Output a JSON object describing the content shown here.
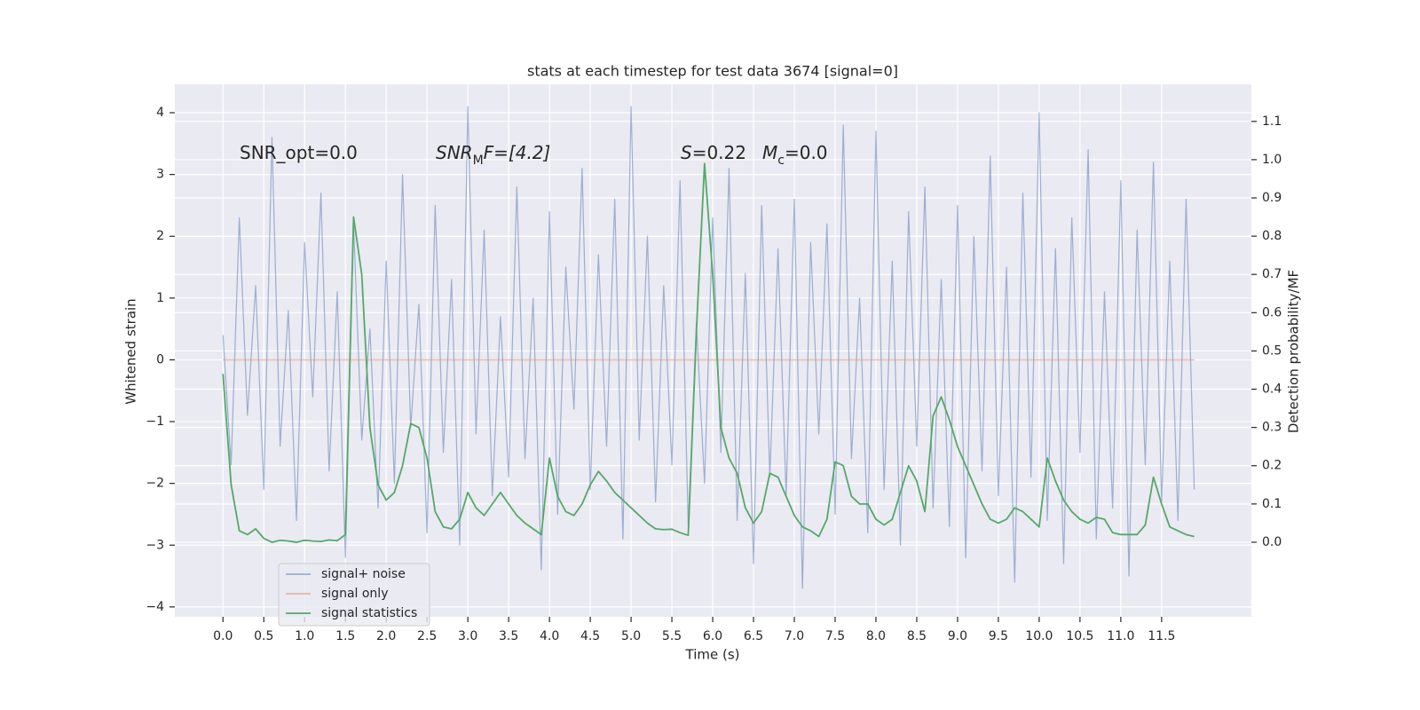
{
  "chart_data": {
    "type": "line",
    "title": "stats at each timestep for test data 3674 [signal=0]",
    "xlabel": "Time (s)",
    "ylabel": "Whitened strain",
    "y2label": "Detection probability/MF",
    "annotations": [
      [
        "SNR_opt=0.0"
      ],
      [
        "SNR",
        "M",
        "F=[4.2]"
      ],
      [
        "S",
        "=0.22"
      ],
      [
        "M",
        "c",
        "=0.0"
      ]
    ],
    "x": [
      0.0,
      0.1,
      0.2,
      0.3,
      0.4,
      0.5,
      0.6,
      0.7,
      0.8,
      0.9,
      1.0,
      1.1,
      1.2,
      1.3,
      1.4,
      1.5,
      1.6,
      1.7,
      1.8,
      1.9,
      2.0,
      2.1,
      2.2,
      2.3,
      2.4,
      2.5,
      2.6,
      2.7,
      2.8,
      2.9,
      3.0,
      3.1,
      3.2,
      3.3,
      3.4,
      3.5,
      3.6,
      3.7,
      3.8,
      3.9,
      4.0,
      4.1,
      4.2,
      4.3,
      4.4,
      4.5,
      4.6,
      4.7,
      4.8,
      4.9,
      5.0,
      5.1,
      5.2,
      5.3,
      5.4,
      5.5,
      5.6,
      5.7,
      5.8,
      5.9,
      6.0,
      6.1,
      6.2,
      6.3,
      6.4,
      6.5,
      6.6,
      6.7,
      6.8,
      6.9,
      7.0,
      7.1,
      7.2,
      7.3,
      7.4,
      7.5,
      7.6,
      7.7,
      7.8,
      7.9,
      8.0,
      8.1,
      8.2,
      8.3,
      8.4,
      8.5,
      8.6,
      8.7,
      8.8,
      8.9,
      9.0,
      9.1,
      9.2,
      9.3,
      9.4,
      9.5,
      9.6,
      9.7,
      9.8,
      9.9,
      10.0,
      10.1,
      10.2,
      10.3,
      10.4,
      10.5,
      10.6,
      10.7,
      10.8,
      10.9,
      11.0,
      11.1,
      11.2,
      11.3,
      11.4,
      11.5,
      11.6,
      11.7,
      11.8,
      11.9
    ],
    "series": [
      {
        "name": "signal+ noise",
        "color": "#4c72b0",
        "values": [
          0.4,
          -1.7,
          2.3,
          -0.9,
          1.2,
          -2.1,
          3.6,
          -1.4,
          0.8,
          -2.6,
          1.9,
          -0.6,
          2.7,
          -1.8,
          1.1,
          -3.2,
          2.2,
          -1.3,
          0.5,
          -2.4,
          1.6,
          -2.0,
          3.0,
          -1.1,
          0.9,
          -2.8,
          2.5,
          -1.5,
          1.3,
          -3.0,
          4.1,
          -1.2,
          2.1,
          -2.2,
          0.7,
          -1.9,
          2.8,
          -1.6,
          1.0,
          -3.4,
          2.4,
          -2.5,
          1.5,
          -0.8,
          3.1,
          -2.1,
          1.7,
          -1.4,
          2.6,
          -2.9,
          4.1,
          -1.3,
          2.0,
          -2.3,
          1.2,
          -1.7,
          2.9,
          -2.7,
          0.6,
          -2.0,
          2.3,
          -1.5,
          3.1,
          -2.6,
          1.4,
          -3.3,
          2.5,
          -1.9,
          1.8,
          -2.2,
          2.6,
          -3.7,
          1.9,
          -1.2,
          2.2,
          -2.5,
          3.8,
          -1.6,
          1.0,
          -2.8,
          3.7,
          -2.1,
          1.6,
          -3.0,
          2.4,
          -1.4,
          2.8,
          -2.4,
          1.3,
          -2.7,
          2.5,
          -3.2,
          2.0,
          -1.8,
          3.3,
          -2.2,
          1.5,
          -3.6,
          2.7,
          -1.9,
          4.0,
          -2.6,
          1.8,
          -3.3,
          2.3,
          -1.5,
          3.4,
          -2.9,
          1.1,
          -2.4,
          2.9,
          -3.5,
          2.1,
          -1.7,
          3.2,
          -2.3,
          1.6,
          -2.6,
          2.6,
          -2.1
        ]
      },
      {
        "name": "signal only",
        "color": "#dd8452",
        "values": [
          0,
          0,
          0,
          0,
          0,
          0,
          0,
          0,
          0,
          0,
          0,
          0,
          0,
          0,
          0,
          0,
          0,
          0,
          0,
          0,
          0,
          0,
          0,
          0,
          0,
          0,
          0,
          0,
          0,
          0,
          0,
          0,
          0,
          0,
          0,
          0,
          0,
          0,
          0,
          0,
          0,
          0,
          0,
          0,
          0,
          0,
          0,
          0,
          0,
          0,
          0,
          0,
          0,
          0,
          0,
          0,
          0,
          0,
          0,
          0,
          0,
          0,
          0,
          0,
          0,
          0,
          0,
          0,
          0,
          0,
          0,
          0,
          0,
          0,
          0,
          0,
          0,
          0,
          0,
          0,
          0,
          0,
          0,
          0,
          0,
          0,
          0,
          0,
          0,
          0,
          0,
          0,
          0,
          0,
          0,
          0,
          0,
          0,
          0,
          0,
          0,
          0,
          0,
          0,
          0,
          0,
          0,
          0,
          0,
          0,
          0,
          0,
          0,
          0,
          0,
          0,
          0,
          0,
          0,
          0
        ]
      },
      {
        "name": "signal statistics",
        "color": "#55a868",
        "axis": "y2",
        "values": [
          0.44,
          0.15,
          0.03,
          0.02,
          0.035,
          0.01,
          0.0,
          0.005,
          0.003,
          0.0,
          0.005,
          0.003,
          0.002,
          0.006,
          0.004,
          0.02,
          0.85,
          0.7,
          0.3,
          0.15,
          0.11,
          0.13,
          0.2,
          0.31,
          0.3,
          0.22,
          0.08,
          0.04,
          0.035,
          0.06,
          0.13,
          0.09,
          0.07,
          0.1,
          0.13,
          0.1,
          0.07,
          0.05,
          0.035,
          0.02,
          0.22,
          0.12,
          0.08,
          0.07,
          0.1,
          0.15,
          0.185,
          0.16,
          0.13,
          0.11,
          0.09,
          0.07,
          0.05,
          0.035,
          0.033,
          0.034,
          0.025,
          0.018,
          0.55,
          0.99,
          0.7,
          0.3,
          0.22,
          0.18,
          0.09,
          0.05,
          0.08,
          0.18,
          0.17,
          0.12,
          0.07,
          0.04,
          0.03,
          0.015,
          0.06,
          0.21,
          0.2,
          0.12,
          0.1,
          0.1,
          0.06,
          0.045,
          0.06,
          0.13,
          0.2,
          0.16,
          0.08,
          0.33,
          0.38,
          0.32,
          0.25,
          0.2,
          0.15,
          0.1,
          0.06,
          0.05,
          0.06,
          0.09,
          0.08,
          0.06,
          0.04,
          0.22,
          0.16,
          0.11,
          0.08,
          0.06,
          0.05,
          0.065,
          0.06,
          0.025,
          0.02,
          0.02,
          0.02,
          0.045,
          0.17,
          0.1,
          0.04,
          0.03,
          0.02,
          0.015
        ]
      }
    ],
    "xlim": [
      -0.59,
      12.6
    ],
    "ylim": [
      -4.16,
      4.46
    ],
    "y2lim": [
      -0.195,
      1.197
    ],
    "xticks": [
      {
        "value": 0,
        "label": "0.0"
      },
      {
        "value": 0.5,
        "label": "0.5"
      },
      {
        "value": 1,
        "label": "1.0"
      },
      {
        "value": 1.5,
        "label": "1.5"
      },
      {
        "value": 2,
        "label": "2.0"
      },
      {
        "value": 2.5,
        "label": "2.5"
      },
      {
        "value": 3,
        "label": "3.0"
      },
      {
        "value": 3.5,
        "label": "3.5"
      },
      {
        "value": 4,
        "label": "4.0"
      },
      {
        "value": 4.5,
        "label": "4.5"
      },
      {
        "value": 5,
        "label": "5.0"
      },
      {
        "value": 5.5,
        "label": "5.5"
      },
      {
        "value": 6,
        "label": "6.0"
      },
      {
        "value": 6.5,
        "label": "6.5"
      },
      {
        "value": 7,
        "label": "7.0"
      },
      {
        "value": 7.5,
        "label": "7.5"
      },
      {
        "value": 8,
        "label": "8.0"
      },
      {
        "value": 8.5,
        "label": "8.5"
      },
      {
        "value": 9,
        "label": "9.0"
      },
      {
        "value": 9.5,
        "label": "9.5"
      },
      {
        "value": 10,
        "label": "10.0"
      },
      {
        "value": 10.5,
        "label": "10.5"
      },
      {
        "value": 11,
        "label": "11.0"
      },
      {
        "value": 11.5,
        "label": "11.5"
      }
    ],
    "yticks": [
      {
        "value": -4,
        "label": "−4"
      },
      {
        "value": -3,
        "label": "−3"
      },
      {
        "value": -2,
        "label": "−2"
      },
      {
        "value": -1,
        "label": "−1"
      },
      0,
      1,
      2,
      3,
      4
    ],
    "y2ticks": [
      {
        "value": 0,
        "label": "0.0"
      },
      {
        "value": 0.1,
        "label": "0.1"
      },
      {
        "value": 0.2,
        "label": "0.2"
      },
      {
        "value": 0.3,
        "label": "0.3"
      },
      {
        "value": 0.4,
        "label": "0.4"
      },
      {
        "value": 0.5,
        "label": "0.5"
      },
      {
        "value": 0.6,
        "label": "0.6"
      },
      {
        "value": 0.7,
        "label": "0.7"
      },
      {
        "value": 0.8,
        "label": "0.8"
      },
      {
        "value": 0.9,
        "label": "0.9"
      },
      {
        "value": 1.0,
        "label": "1.0"
      },
      {
        "value": 1.1,
        "label": "1.1"
      }
    ],
    "grid": true,
    "legend": "lower left",
    "background": "#eaeaf2"
  }
}
